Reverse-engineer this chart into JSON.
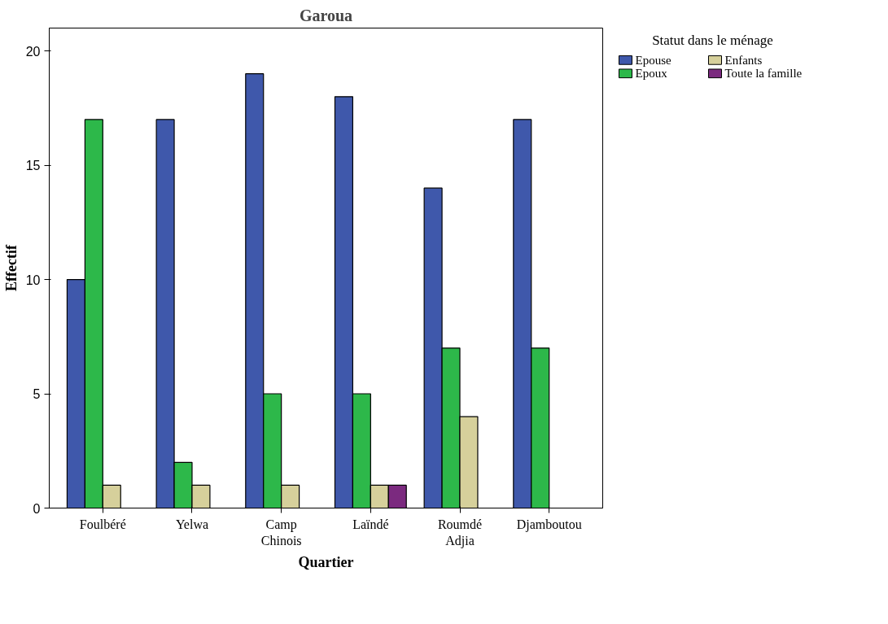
{
  "chart_data": {
    "type": "bar",
    "title": "Garoua",
    "xlabel": "Quartier",
    "ylabel": "Effectif",
    "legend_title": "Statut dans le ménage",
    "categories": [
      "Foulbéré",
      "Yelwa",
      "Camp Chinois",
      "Laïndé",
      "Roumdé Adjia",
      "Djamboutou"
    ],
    "series": [
      {
        "name": "Epouse",
        "color": "#3f58ab",
        "values": [
          10,
          17,
          19,
          18,
          14,
          17
        ]
      },
      {
        "name": "Epoux",
        "color": "#2db84a",
        "values": [
          17,
          2,
          5,
          5,
          7,
          7
        ]
      },
      {
        "name": "Enfants",
        "color": "#d6d09b",
        "values": [
          1,
          1,
          1,
          1,
          4,
          null
        ]
      },
      {
        "name": "Toute la famille",
        "color": "#7b2a7f",
        "values": [
          null,
          null,
          null,
          1,
          null,
          null
        ]
      }
    ],
    "ylim": [
      0,
      21
    ],
    "yticks": [
      0,
      5,
      10,
      15,
      20
    ],
    "grid": false,
    "legend": "top right"
  }
}
